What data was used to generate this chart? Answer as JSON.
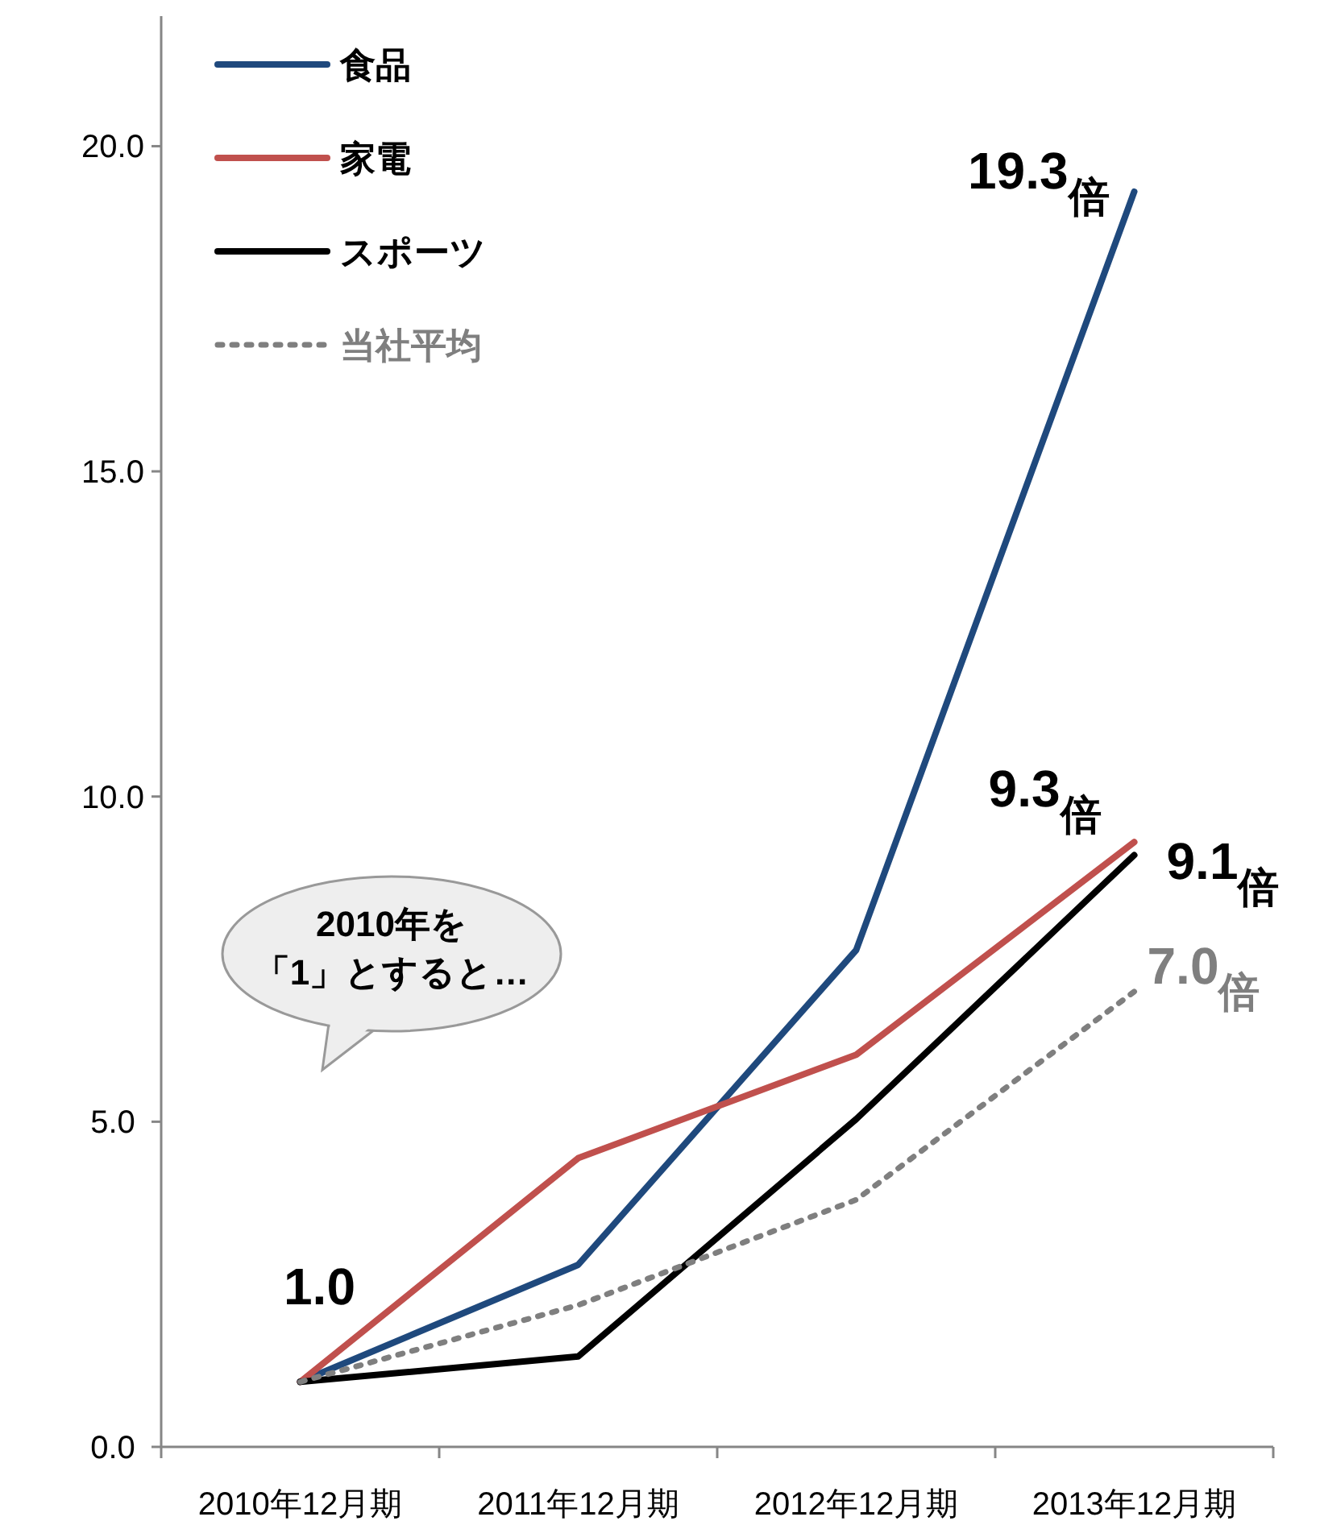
{
  "chart_data": {
    "type": "line",
    "categories": [
      "2010年12月期",
      "2011年12月期",
      "2012年12月期",
      "2013年12月期"
    ],
    "series": [
      {
        "name": "食品",
        "color": "#1f497d",
        "line_style": "solid",
        "values": [
          1.0,
          2.8,
          7.64,
          19.3
        ]
      },
      {
        "name": "家電",
        "color": "#c0504d",
        "line_style": "solid",
        "values": [
          1.0,
          4.44,
          6.03,
          9.3
        ]
      },
      {
        "name": "スポーツ",
        "color": "#000000",
        "line_style": "solid",
        "values": [
          1.0,
          1.39,
          5.04,
          9.1
        ]
      },
      {
        "name": "当社平均",
        "color": "#7f7f7f",
        "line_style": "dotted",
        "values": [
          1.0,
          2.18,
          3.8,
          7.0
        ]
      }
    ],
    "ylim": [
      0,
      22
    ],
    "yticks": [
      {
        "value": 0,
        "label": "0.0"
      },
      {
        "value": 5,
        "label": "5.0"
      },
      {
        "value": 10,
        "label": "10.0"
      },
      {
        "value": 15,
        "label": "15.0"
      },
      {
        "value": 20,
        "label": "20.0"
      }
    ],
    "grid": false,
    "legend": "top left",
    "annotations": [
      {
        "text": "1.0",
        "x": "2010年12月期",
        "y": 1.0
      },
      {
        "text": "19.3$_{倍}$",
        "x": "2013年12月期",
        "y": 19.3
      },
      {
        "text": "9.3$_{倍}$",
        "x": "2013年12月期",
        "y": 9.3
      },
      {
        "text": "9.1$_{倍}$",
        "x": "2013年12月期",
        "y": 9.1
      },
      {
        "text": "7.0$_{倍}$",
        "x": "2013年12月期",
        "y": 7.0
      },
      "2010年を",
      "「1」とすると…"
    ]
  }
}
